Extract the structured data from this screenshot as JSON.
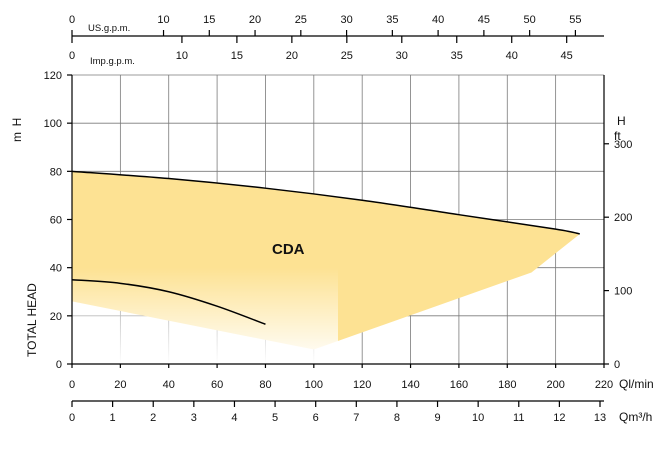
{
  "chart_data": {
    "type": "area",
    "series_label": "CDA",
    "fill_color": "#fde293",
    "curve_color": "#000000",
    "ylabel": "TOTAL HEAD",
    "y_left": {
      "unit_top": "H",
      "unit_bottom": "m",
      "range": [
        0,
        120
      ],
      "ticks": [
        "0",
        "20",
        "40",
        "60",
        "80",
        "100",
        "120"
      ]
    },
    "y_right": {
      "unit_top": "H",
      "unit_bottom": "ft",
      "range_m": [
        0,
        120
      ],
      "m_per_ft": 0.3048,
      "ticks": [
        "0",
        "100",
        "200",
        "300"
      ]
    },
    "x_main": {
      "unit": "Ql/min",
      "range": [
        0,
        220
      ],
      "ticks": [
        "0",
        "20",
        "40",
        "60",
        "80",
        "100",
        "120",
        "140",
        "160",
        "180",
        "200",
        "220"
      ]
    },
    "x_m3h": {
      "unit": "Qm³/h",
      "range": [
        0,
        13
      ],
      "ticks": [
        "0",
        "1",
        "2",
        "3",
        "4",
        "5",
        "6",
        "7",
        "8",
        "9",
        "10",
        "11",
        "12",
        "13"
      ]
    },
    "x_us": {
      "unit": "US.g.p.m.",
      "lpm_per_unit": 3.785,
      "ticks": [
        "0",
        "10",
        "15",
        "20",
        "25",
        "30",
        "35",
        "40",
        "45",
        "50",
        "55"
      ]
    },
    "x_imp": {
      "unit": "Imp.g.p.m.",
      "lpm_per_unit": 4.546,
      "ticks": [
        "0",
        "10",
        "15",
        "20",
        "25",
        "30",
        "35",
        "40",
        "45"
      ]
    },
    "upper_curve": {
      "x": [
        0,
        40,
        80,
        120,
        160,
        200,
        210
      ],
      "y": [
        80,
        77,
        73,
        68,
        62,
        56,
        54
      ]
    },
    "lower_curve": {
      "x": [
        0,
        20,
        40,
        60,
        80
      ],
      "y": [
        35,
        33.5,
        30,
        24,
        16.5
      ]
    },
    "envelope_lower": {
      "x": [
        210,
        190,
        100,
        0
      ],
      "y": [
        54,
        38,
        6,
        26
      ]
    }
  }
}
